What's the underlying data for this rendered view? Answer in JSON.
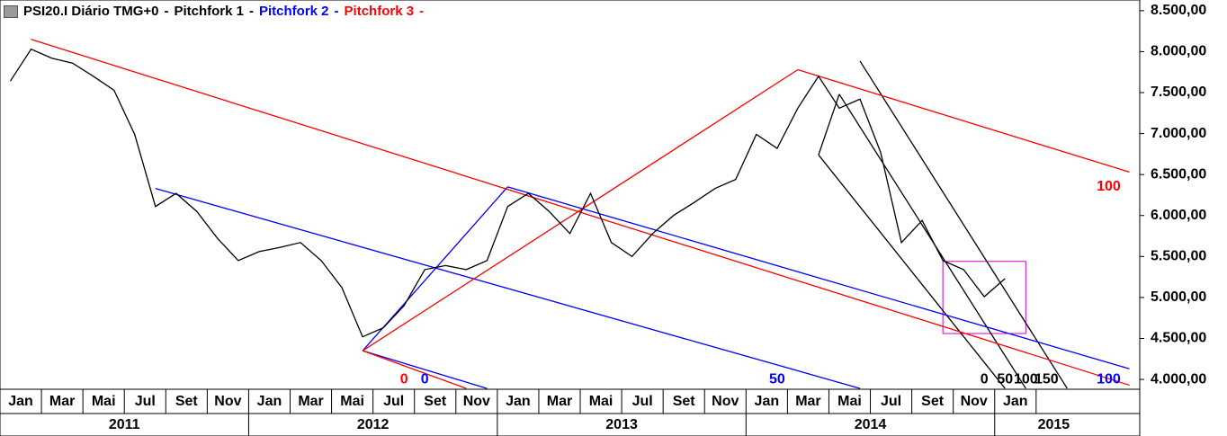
{
  "chart_data": {
    "type": "line",
    "title": "PSI20.I Diário TMG+0",
    "separator": "-",
    "x": [
      "2011-01",
      "2011-02",
      "2011-03",
      "2011-04",
      "2011-05",
      "2011-06",
      "2011-07",
      "2011-08",
      "2011-09",
      "2011-10",
      "2011-11",
      "2011-12",
      "2012-01",
      "2012-02",
      "2012-03",
      "2012-04",
      "2012-05",
      "2012-06",
      "2012-07",
      "2012-08",
      "2012-09",
      "2012-10",
      "2012-11",
      "2012-12",
      "2013-01",
      "2013-02",
      "2013-03",
      "2013-04",
      "2013-05",
      "2013-06",
      "2013-07",
      "2013-08",
      "2013-09",
      "2013-10",
      "2013-11",
      "2013-12",
      "2014-01",
      "2014-02",
      "2014-03",
      "2014-04",
      "2014-05",
      "2014-06",
      "2014-07",
      "2014-08",
      "2014-09",
      "2014-10",
      "2014-11",
      "2014-12",
      "2015-01"
    ],
    "series": [
      {
        "name": "PSI20.I",
        "color": "#000000",
        "values": [
          7640,
          8030,
          7920,
          7860,
          7700,
          7530,
          6990,
          6110,
          6270,
          6050,
          5720,
          5450,
          5560,
          5610,
          5670,
          5450,
          5120,
          4520,
          4630,
          4900,
          5340,
          5390,
          5340,
          5450,
          6110,
          6270,
          6050,
          5780,
          6270,
          5670,
          5500,
          5780,
          6000,
          6160,
          6330,
          6440,
          6990,
          6820,
          7310,
          7700,
          7310,
          7420,
          6770,
          5670,
          5940,
          5450,
          5340,
          5010,
          5230
        ]
      }
    ],
    "xlim": [
      "2011-01",
      "2015-07"
    ],
    "ylim": [
      3880,
      8630
    ],
    "yticks": [
      {
        "value": 4000,
        "label": "4.000,00"
      },
      {
        "value": 4500,
        "label": "4.500,00"
      },
      {
        "value": 5000,
        "label": "5.000,00"
      },
      {
        "value": 5500,
        "label": "5.500,00"
      },
      {
        "value": 6000,
        "label": "6.000,00"
      },
      {
        "value": 6500,
        "label": "6.500,00"
      },
      {
        "value": 7000,
        "label": "7.000,00"
      },
      {
        "value": 7500,
        "label": "7.500,00"
      },
      {
        "value": 8000,
        "label": "8.000,00"
      },
      {
        "value": 8500,
        "label": "8.500,00"
      }
    ],
    "xticks": [
      {
        "value": "2011-01",
        "label": "Jan"
      },
      {
        "value": "2011-03",
        "label": "Mar"
      },
      {
        "value": "2011-05",
        "label": "Mai"
      },
      {
        "value": "2011-07",
        "label": "Jul"
      },
      {
        "value": "2011-09",
        "label": "Set"
      },
      {
        "value": "2011-11",
        "label": "Nov"
      },
      {
        "value": "2012-01",
        "label": "Jan"
      },
      {
        "value": "2012-03",
        "label": "Mar"
      },
      {
        "value": "2012-05",
        "label": "Mai"
      },
      {
        "value": "2012-07",
        "label": "Jul"
      },
      {
        "value": "2012-09",
        "label": "Set"
      },
      {
        "value": "2012-11",
        "label": "Nov"
      },
      {
        "value": "2013-01",
        "label": "Jan"
      },
      {
        "value": "2013-03",
        "label": "Mar"
      },
      {
        "value": "2013-05",
        "label": "Mai"
      },
      {
        "value": "2013-07",
        "label": "Jul"
      },
      {
        "value": "2013-09",
        "label": "Set"
      },
      {
        "value": "2013-11",
        "label": "Nov"
      },
      {
        "value": "2014-01",
        "label": "Jan"
      },
      {
        "value": "2014-03",
        "label": "Mar"
      },
      {
        "value": "2014-05",
        "label": "Mai"
      },
      {
        "value": "2014-07",
        "label": "Jul"
      },
      {
        "value": "2014-09",
        "label": "Set"
      },
      {
        "value": "2014-11",
        "label": "Nov"
      },
      {
        "value": "2015-01",
        "label": "Jan"
      }
    ],
    "year_ticks": [
      2011,
      2012,
      2013,
      2014,
      2015
    ],
    "grid": false,
    "pitchforks": [
      {
        "name": "Pitchfork 1",
        "color": "#000000",
        "lines": [
          [
            [
              "2014-05",
              7480
            ],
            [
              "2015-02",
              3890
            ]
          ],
          [
            [
              "2014-04",
              6740
            ],
            [
              "2015-01",
              3890
            ]
          ],
          [
            [
              "2014-06",
              7885
            ],
            [
              "2015-04",
              3890
            ]
          ],
          [
            [
              "2014-04",
              6740
            ],
            [
              "2014-05",
              7480
            ]
          ]
        ],
        "labels": [
          {
            "text": 0,
            "x": "2014-12",
            "y": 4000
          },
          {
            "text": 50,
            "x": "2015-01",
            "y": 4000
          },
          {
            "text": 100,
            "x": "2015-02",
            "y": 4000
          },
          {
            "text": 150,
            "x": "2015-03",
            "y": 4000
          }
        ]
      },
      {
        "name": "Pitchfork 2",
        "color": "#0000ff",
        "lines": [
          [
            [
              "2011-08",
              6330
            ],
            [
              "2014-06",
              3890
            ]
          ],
          [
            [
              "2013-01",
              6350
            ],
            [
              "2015-07",
              4130
            ]
          ],
          [
            [
              "2012-06",
              4350
            ],
            [
              "2013-01",
              6350
            ]
          ],
          [
            [
              "2012-06",
              4350
            ],
            [
              "2012-12",
              3890
            ]
          ]
        ],
        "labels": [
          {
            "text": 0,
            "x": "2012-09",
            "y": 4000
          },
          {
            "text": 50,
            "x": "2014-02",
            "y": 4000
          },
          {
            "text": 100,
            "x": "2015-06",
            "y": 4000
          }
        ]
      },
      {
        "name": "Pitchfork 3",
        "color": "#ff0000",
        "lines": [
          [
            [
              "2011-02",
              8150
            ],
            [
              "2015-07",
              3930
            ]
          ],
          [
            [
              "2012-06",
              4350
            ],
            [
              "2014-03",
              7780
            ]
          ],
          [
            [
              "2014-03",
              7780
            ],
            [
              "2015-07",
              6530
            ]
          ],
          [
            [
              "2012-06",
              4350
            ],
            [
              "2012-11",
              3890
            ]
          ]
        ],
        "labels": [
          {
            "text": 0,
            "x": "2012-08",
            "y": 4000
          },
          {
            "text": 100,
            "x": "2015-06",
            "y": 6350
          }
        ]
      }
    ],
    "highlight": {
      "color": "#cc00cc",
      "x": [
        "2014-10",
        "2015-02"
      ],
      "y": [
        4560,
        5440
      ]
    }
  }
}
